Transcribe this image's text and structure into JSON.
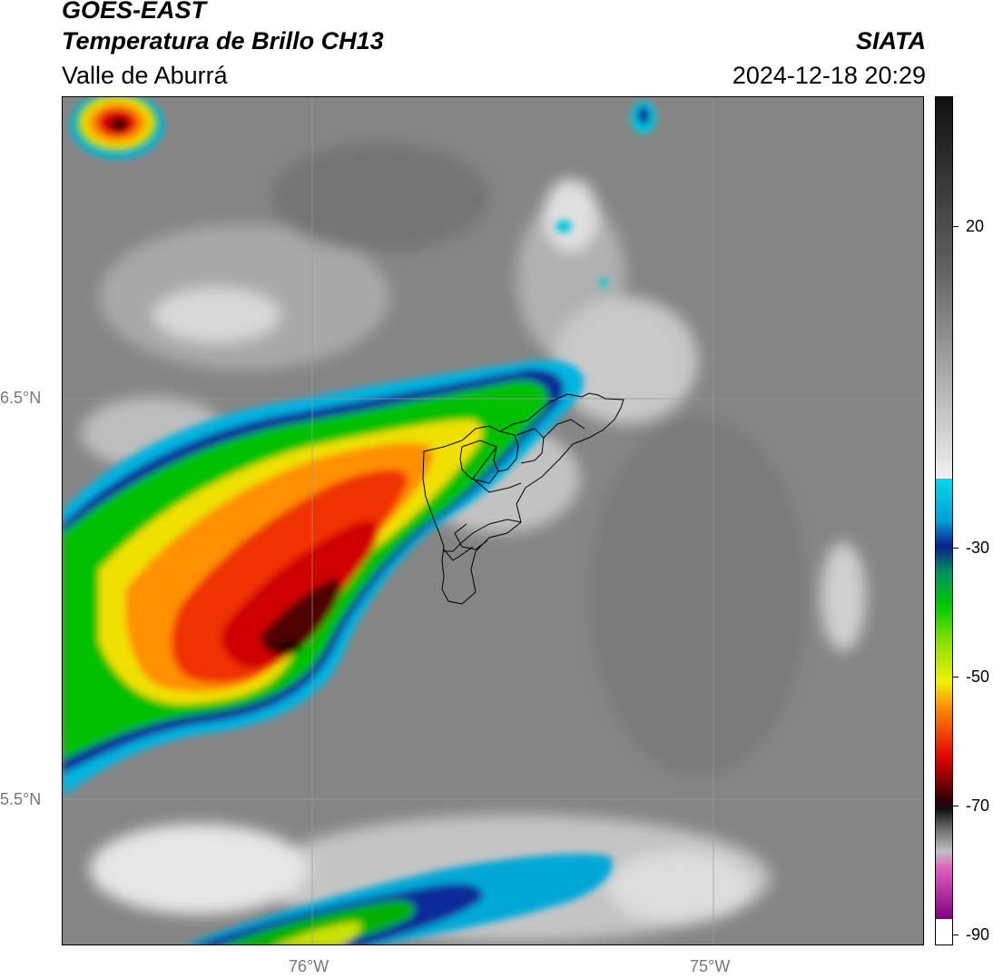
{
  "header": {
    "satellite": "GOES-EAST",
    "product": "Temperatura de Brillo CH13",
    "region": "Valle de Aburrá",
    "organization": "SIATA",
    "datetime": "2024-12-18 20:29"
  },
  "map": {
    "lon_labels": [
      "76°W",
      "75°W"
    ],
    "lat_labels": [
      "6.5°N",
      "5.5°N"
    ]
  },
  "colorbar": {
    "labels": [
      "20",
      "-30",
      "-50",
      "-70",
      "-90"
    ],
    "colors": {
      "gray_light": "#f0f0f0",
      "gray_dark": "#202020",
      "cyan": "#00d8e8",
      "blue": "#0a1e8c",
      "green": "#00c800",
      "yellow": "#f0f000",
      "orange": "#ff8c00",
      "red": "#e00000",
      "dark_red": "#300000",
      "magenta": "#e060c0",
      "purple": "#800080"
    }
  }
}
